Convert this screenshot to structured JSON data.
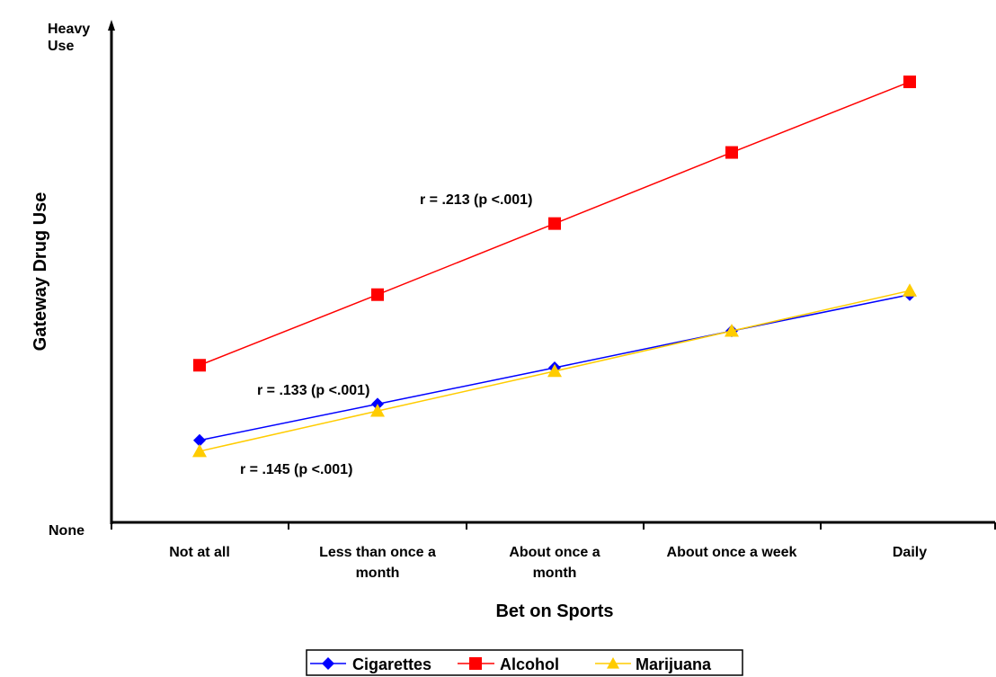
{
  "chart_data": {
    "type": "line",
    "title": "",
    "xlabel": "Bet on Sports",
    "ylabel": "Gateway Drug Use",
    "y_labels": {
      "top": [
        "Heavy",
        "Use"
      ],
      "bottom": "None"
    },
    "categories": [
      [
        "Not at all"
      ],
      [
        "Less than once a",
        "month"
      ],
      [
        "About once a",
        "month"
      ],
      [
        "About once a week"
      ],
      [
        "Daily"
      ]
    ],
    "ylim": [
      0,
      100
    ],
    "grid": false,
    "legend_position": "bottom",
    "series": [
      {
        "name": "Cigarettes",
        "color": "#0000FF",
        "marker": "diamond",
        "values": [
          16.5,
          23.8,
          31.1,
          38.5,
          45.8
        ]
      },
      {
        "name": "Alcohol",
        "color": "#FF0000",
        "marker": "square",
        "values": [
          31.6,
          45.8,
          60.1,
          74.4,
          88.6
        ]
      },
      {
        "name": "Marijuana",
        "color": "#FFCC00",
        "marker": "triangle",
        "values": [
          14.3,
          22.4,
          30.4,
          38.5,
          46.6
        ]
      }
    ],
    "annotations": [
      {
        "text": "r = .213 (p <.001)",
        "series": "Alcohol"
      },
      {
        "text": "r = .133 (p <.001)",
        "series": "Cigarettes"
      },
      {
        "text": "r = .145 (p <.001)",
        "series": "Marijuana"
      }
    ]
  }
}
